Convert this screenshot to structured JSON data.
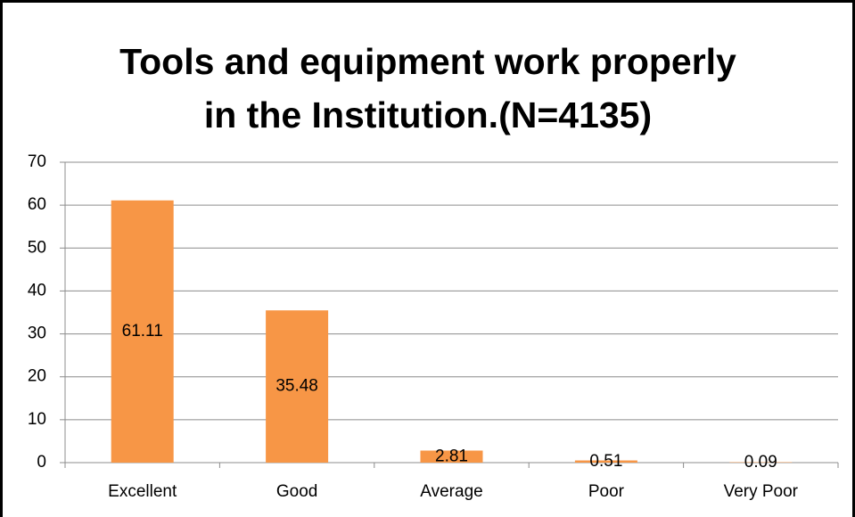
{
  "chart_data": {
    "type": "bar",
    "title": [
      "Tools and equipment work properly",
      "in the Institution.(N=4135)"
    ],
    "categories": [
      "Excellent",
      "Good",
      "Average",
      "Poor",
      "Very Poor"
    ],
    "values": [
      61.11,
      35.48,
      2.81,
      0.51,
      0.09
    ],
    "color": "#f79646",
    "ylim": [
      0,
      70
    ],
    "yticks": [
      0,
      10,
      20,
      30,
      40,
      50,
      60,
      70
    ],
    "grid": true
  }
}
